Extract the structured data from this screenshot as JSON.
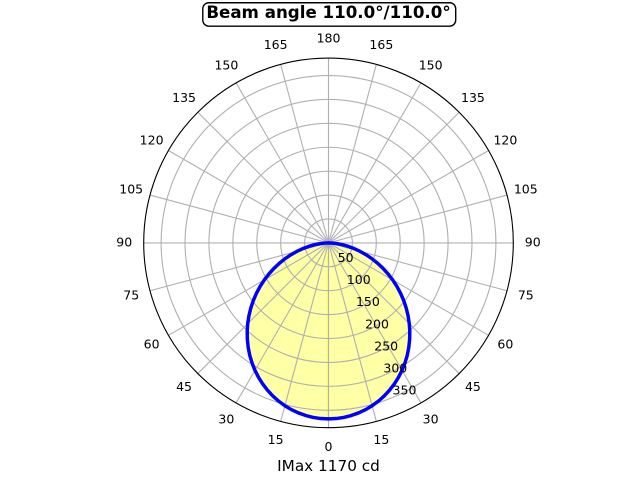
{
  "chart_data": {
    "type": "polar",
    "title": "Beam angle 110.0°/110.0°",
    "footer": "IMax 1170 cd",
    "beam_angle_deg": 110.0,
    "imax_cd": 1170,
    "r_ticks": [
      50,
      100,
      150,
      200,
      250,
      300,
      350
    ],
    "r_min": 0,
    "r_max": 386.4,
    "angle_unit": "deg",
    "angle_zero_location": "bottom",
    "grid": true,
    "rlabel_angle_deg": 22.5,
    "angle_ticks": [
      {
        "deg": 0,
        "label": "0"
      },
      {
        "deg": 15,
        "label": "15"
      },
      {
        "deg": 30,
        "label": "30"
      },
      {
        "deg": 45,
        "label": "45"
      },
      {
        "deg": 60,
        "label": "60"
      },
      {
        "deg": 75,
        "label": "75"
      },
      {
        "deg": 90,
        "label": "90"
      },
      {
        "deg": 105,
        "label": "105"
      },
      {
        "deg": 120,
        "label": "120"
      },
      {
        "deg": 135,
        "label": "135"
      },
      {
        "deg": 150,
        "label": "150"
      },
      {
        "deg": 165,
        "label": "165"
      },
      {
        "deg": 180,
        "label": "180"
      },
      {
        "deg": 195,
        "label": "165"
      },
      {
        "deg": 210,
        "label": "150"
      },
      {
        "deg": 225,
        "label": "135"
      },
      {
        "deg": 240,
        "label": "120"
      },
      {
        "deg": 255,
        "label": "105"
      },
      {
        "deg": 270,
        "label": "90"
      },
      {
        "deg": 285,
        "label": "75"
      },
      {
        "deg": 300,
        "label": "60"
      },
      {
        "deg": 315,
        "label": "45"
      },
      {
        "deg": 330,
        "label": "30"
      },
      {
        "deg": 345,
        "label": "15"
      }
    ],
    "series": [
      {
        "name": "luminous-intensity",
        "angles_deg": [
          -90.0,
          -87.5,
          -85.0,
          -82.5,
          -80.0,
          -77.5,
          -75.0,
          -72.5,
          -70.0,
          -67.5,
          -65.0,
          -62.5,
          -60.0,
          -57.5,
          -55.0,
          -52.5,
          -50.0,
          -47.5,
          -45.0,
          -42.5,
          -40.0,
          -37.5,
          -35.0,
          -32.5,
          -30.0,
          -27.5,
          -25.0,
          -22.5,
          -20.0,
          -17.5,
          -15.0,
          -12.5,
          -10.0,
          -7.5,
          -5.0,
          -2.5,
          0.0,
          2.5,
          5.0,
          7.5,
          10.0,
          12.5,
          15.0,
          17.5,
          20.0,
          22.5,
          25.0,
          27.5,
          30.0,
          32.5,
          35.0,
          37.5,
          40.0,
          42.5,
          45.0,
          47.5,
          50.0,
          52.5,
          55.0,
          57.5,
          60.0,
          62.5,
          65.0,
          67.5,
          70.0,
          72.5,
          75.0,
          77.5,
          80.0,
          82.5,
          85.0,
          87.5,
          90.0
        ],
        "values": [
          0.0,
          7.4,
          17.6,
          29.1,
          41.5,
          54.6,
          68.2,
          82.2,
          96.6,
          111.1,
          125.7,
          140.4,
          155.0,
          169.6,
          184.0,
          198.2,
          212.1,
          225.7,
          238.9,
          251.6,
          263.9,
          275.7,
          287.0,
          297.6,
          307.6,
          316.9,
          325.5,
          333.4,
          340.5,
          346.9,
          352.4,
          357.2,
          361.0,
          364.1,
          366.3,
          367.6,
          368.0,
          367.6,
          366.3,
          364.1,
          361.0,
          357.2,
          352.4,
          346.9,
          340.5,
          333.4,
          325.5,
          316.9,
          307.6,
          297.6,
          287.0,
          275.7,
          263.9,
          251.6,
          238.9,
          225.7,
          212.1,
          198.2,
          184.0,
          169.6,
          155.0,
          140.4,
          125.7,
          111.1,
          96.6,
          82.2,
          68.2,
          54.6,
          41.5,
          29.1,
          17.6,
          7.4,
          0.0
        ]
      }
    ],
    "colors": {
      "curve": "#0000ff",
      "fill": "#ffff00",
      "fill_opacity": 0.35,
      "grid": "#b0b0b0",
      "outline": "#000000",
      "text": "#000000",
      "title_box_bg": "#ffffff",
      "title_box_border": "#000000",
      "background": "#ffffff"
    }
  }
}
